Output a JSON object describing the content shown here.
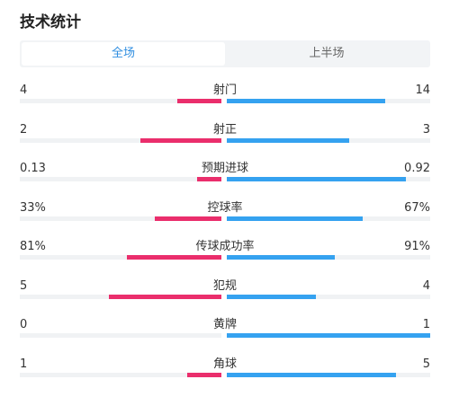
{
  "header": {
    "title": "技术统计"
  },
  "tabs": [
    {
      "label": "全场",
      "active": true
    },
    {
      "label": "上半场",
      "active": false
    }
  ],
  "colors": {
    "home": "#ea2e6c",
    "away": "#35a2f0",
    "active_tab": "#2f8ee0"
  },
  "stats": [
    {
      "name": "射门",
      "home": "4",
      "away": "14",
      "home_ratio": 0.22,
      "away_ratio": 0.78
    },
    {
      "name": "射正",
      "home": "2",
      "away": "3",
      "home_ratio": 0.4,
      "away_ratio": 0.6
    },
    {
      "name": "预期进球",
      "home": "0.13",
      "away": "0.92",
      "home_ratio": 0.12,
      "away_ratio": 0.88
    },
    {
      "name": "控球率",
      "home": "33%",
      "away": "67%",
      "home_ratio": 0.33,
      "away_ratio": 0.67
    },
    {
      "name": "传球成功率",
      "home": "81%",
      "away": "91%",
      "home_ratio": 0.47,
      "away_ratio": 0.53
    },
    {
      "name": "犯规",
      "home": "5",
      "away": "4",
      "home_ratio": 0.56,
      "away_ratio": 0.44
    },
    {
      "name": "黄牌",
      "home": "0",
      "away": "1",
      "home_ratio": 0.0,
      "away_ratio": 1.0
    },
    {
      "name": "角球",
      "home": "1",
      "away": "5",
      "home_ratio": 0.17,
      "away_ratio": 0.83
    }
  ]
}
